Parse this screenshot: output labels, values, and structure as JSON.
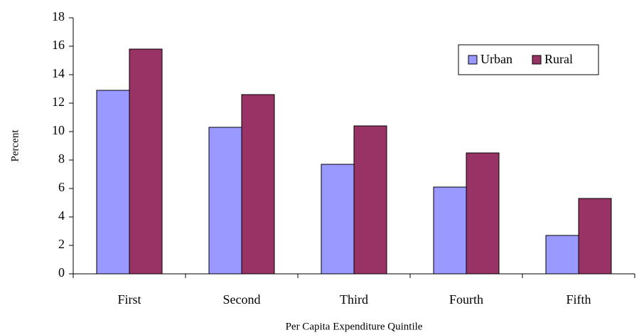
{
  "chart_data": {
    "type": "bar",
    "y_label": "Percent",
    "x_label": "Per Capita Expenditure Quintile",
    "categories": [
      "First",
      "Second",
      "Third",
      "Fourth",
      "Fifth"
    ],
    "series": [
      {
        "name": "Urban",
        "color": "#9999ff",
        "values": [
          12.9,
          10.3,
          7.7,
          6.1,
          2.7
        ]
      },
      {
        "name": "Rural",
        "color": "#993366",
        "values": [
          15.8,
          12.6,
          10.4,
          8.5,
          5.3
        ]
      }
    ],
    "ylim": [
      0,
      18
    ],
    "yticks": [
      0,
      2,
      4,
      6,
      8,
      10,
      12,
      14,
      16,
      18
    ],
    "grid": false,
    "legend": "upper right"
  }
}
